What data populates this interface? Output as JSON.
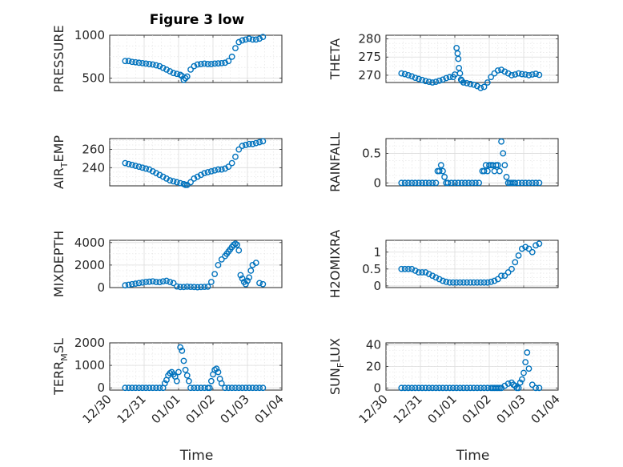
{
  "figure": {
    "title": "Figure 3 low",
    "marker_color": "#0072BD"
  },
  "chart_data": [
    {
      "type": "scatter",
      "panel": 1,
      "ylabel": "PRESSURE",
      "xlabel": "",
      "ylim": [
        450,
        1000
      ],
      "yticks": [
        500,
        1000
      ],
      "ytick_labels": [
        "500",
        "1000"
      ],
      "xlim": [
        0,
        5
      ],
      "xtick_labels": [],
      "grid": true,
      "x": [
        0.45,
        0.55,
        0.65,
        0.75,
        0.85,
        0.95,
        1.05,
        1.15,
        1.25,
        1.35,
        1.45,
        1.55,
        1.65,
        1.75,
        1.85,
        1.95,
        2.05,
        2.1,
        2.15,
        2.2,
        2.25,
        2.35,
        2.45,
        2.55,
        2.65,
        2.75,
        2.85,
        2.95,
        3.05,
        3.15,
        3.25,
        3.35,
        3.45,
        3.55,
        3.65,
        3.75,
        3.85,
        3.95,
        4.05,
        4.15,
        4.25,
        4.35,
        4.45
      ],
      "y": [
        700,
        700,
        690,
        685,
        680,
        675,
        670,
        665,
        660,
        650,
        640,
        620,
        600,
        580,
        560,
        550,
        540,
        525,
        480,
        500,
        520,
        600,
        640,
        660,
        665,
        670,
        665,
        665,
        670,
        672,
        675,
        680,
        700,
        750,
        850,
        920,
        940,
        950,
        960,
        950,
        950,
        960,
        980
      ]
    },
    {
      "type": "scatter",
      "panel": 2,
      "ylabel": "THETA",
      "xlabel": "",
      "ylim": [
        268,
        281
      ],
      "yticks": [
        270,
        275,
        280
      ],
      "ytick_labels": [
        "270",
        "275",
        "280"
      ],
      "xlim": [
        0,
        5
      ],
      "xtick_labels": [],
      "grid": true,
      "x": [
        0.45,
        0.55,
        0.65,
        0.75,
        0.85,
        0.95,
        1.05,
        1.15,
        1.25,
        1.35,
        1.45,
        1.55,
        1.65,
        1.75,
        1.85,
        1.95,
        2.0,
        2.05,
        2.08,
        2.1,
        2.12,
        2.15,
        2.18,
        2.2,
        2.25,
        2.35,
        2.45,
        2.55,
        2.65,
        2.75,
        2.85,
        2.95,
        3.05,
        3.15,
        3.25,
        3.35,
        3.45,
        3.55,
        3.65,
        3.75,
        3.85,
        3.95,
        4.05,
        4.15,
        4.25,
        4.35,
        4.45
      ],
      "y": [
        270.5,
        270.3,
        270,
        269.7,
        269.3,
        269,
        268.7,
        268.4,
        268.2,
        268,
        268.2,
        268.5,
        268.8,
        269.2,
        269.5,
        269.5,
        270.2,
        277.5,
        276,
        274.5,
        272,
        270.5,
        268.8,
        268.5,
        268,
        267.8,
        267.6,
        267.4,
        267,
        266.5,
        266.8,
        268,
        269.5,
        270.5,
        271.3,
        271.5,
        271,
        270.5,
        270,
        270.2,
        270.5,
        270.3,
        270.2,
        270,
        270.2,
        270.4,
        270.1
      ]
    },
    {
      "type": "scatter",
      "panel": 3,
      "ylabel": "AIR_TEMP",
      "ylabel_parts": {
        "main": "AIR",
        "sub": "T",
        "rest": "EMP"
      },
      "xlabel": "",
      "ylim": [
        220,
        272
      ],
      "yticks": [
        240,
        260
      ],
      "ytick_labels": [
        "240",
        "260"
      ],
      "xlim": [
        0,
        5
      ],
      "xtick_labels": [],
      "grid": true,
      "x": [
        0.45,
        0.55,
        0.65,
        0.75,
        0.85,
        0.95,
        1.05,
        1.15,
        1.25,
        1.35,
        1.45,
        1.55,
        1.65,
        1.75,
        1.85,
        1.95,
        2.05,
        2.15,
        2.2,
        2.25,
        2.35,
        2.45,
        2.55,
        2.65,
        2.75,
        2.85,
        2.95,
        3.05,
        3.15,
        3.25,
        3.35,
        3.45,
        3.55,
        3.65,
        3.75,
        3.85,
        3.95,
        4.05,
        4.15,
        4.25,
        4.35,
        4.45
      ],
      "y": [
        245,
        244,
        243,
        242,
        241,
        240,
        239,
        238,
        236,
        234,
        232,
        230,
        228,
        226,
        225,
        224,
        223,
        222,
        221,
        221,
        224,
        228,
        230,
        232,
        234,
        235,
        236,
        237,
        238,
        238,
        239,
        241,
        245,
        252,
        260,
        264,
        265,
        266,
        266,
        267,
        268,
        269
      ]
    },
    {
      "type": "scatter",
      "panel": 4,
      "ylabel": "RAINFALL",
      "xlabel": "",
      "ylim": [
        -0.05,
        0.75
      ],
      "yticks": [
        0,
        0.5
      ],
      "ytick_labels": [
        "0",
        "0.5"
      ],
      "xlim": [
        0,
        5
      ],
      "xtick_labels": [],
      "grid": true,
      "x": [
        0.45,
        0.55,
        0.65,
        0.75,
        0.85,
        0.95,
        1.05,
        1.15,
        1.25,
        1.35,
        1.45,
        1.5,
        1.55,
        1.6,
        1.65,
        1.7,
        1.75,
        1.8,
        1.9,
        2.0,
        2.1,
        2.2,
        2.3,
        2.4,
        2.5,
        2.6,
        2.7,
        2.8,
        2.85,
        2.9,
        2.95,
        3.0,
        3.05,
        3.1,
        3.15,
        3.2,
        3.25,
        3.3,
        3.35,
        3.4,
        3.45,
        3.5,
        3.55,
        3.6,
        3.65,
        3.7,
        3.75,
        3.85,
        3.95,
        4.05,
        4.15,
        4.25,
        4.35,
        4.45
      ],
      "y": [
        0,
        0,
        0,
        0,
        0,
        0,
        0,
        0,
        0,
        0,
        0,
        0.2,
        0.2,
        0.3,
        0.2,
        0.1,
        0,
        0,
        0,
        0,
        0,
        0,
        0,
        0,
        0,
        0,
        0,
        0.2,
        0.2,
        0.3,
        0.2,
        0.3,
        0.3,
        0.3,
        0.2,
        0.3,
        0.3,
        0.2,
        0.7,
        0.5,
        0.3,
        0.1,
        0,
        0,
        0,
        0,
        0,
        0,
        0,
        0,
        0,
        0,
        0,
        0
      ]
    },
    {
      "type": "scatter",
      "panel": 5,
      "ylabel": "MIXDEPTH",
      "xlabel": "",
      "ylim": [
        0,
        4200
      ],
      "yticks": [
        0,
        2000,
        4000
      ],
      "ytick_labels": [
        "0",
        "2000",
        "4000"
      ],
      "xlim": [
        0,
        5
      ],
      "xtick_labels": [],
      "grid": true,
      "x": [
        0.45,
        0.55,
        0.65,
        0.75,
        0.85,
        0.95,
        1.05,
        1.15,
        1.25,
        1.35,
        1.45,
        1.55,
        1.65,
        1.75,
        1.85,
        1.95,
        2.05,
        2.15,
        2.25,
        2.35,
        2.45,
        2.55,
        2.65,
        2.75,
        2.85,
        2.95,
        3.05,
        3.15,
        3.25,
        3.35,
        3.4,
        3.45,
        3.5,
        3.55,
        3.6,
        3.65,
        3.7,
        3.75,
        3.8,
        3.85,
        3.9,
        3.95,
        4.0,
        4.05,
        4.1,
        4.15,
        4.25,
        4.35,
        4.45
      ],
      "y": [
        200,
        250,
        300,
        350,
        400,
        450,
        500,
        520,
        550,
        500,
        480,
        550,
        600,
        500,
        400,
        100,
        50,
        50,
        80,
        60,
        50,
        30,
        50,
        60,
        80,
        500,
        1200,
        2000,
        2500,
        2800,
        3000,
        3200,
        3400,
        3600,
        3800,
        3900,
        3800,
        3300,
        1100,
        800,
        500,
        300,
        600,
        900,
        1500,
        2000,
        2200,
        400,
        300
      ]
    },
    {
      "type": "scatter",
      "panel": 6,
      "ylabel": "H2OMIXRA",
      "xlabel": "",
      "ylim": [
        -0.05,
        1.35
      ],
      "yticks": [
        0,
        0.5,
        1
      ],
      "ytick_labels": [
        "0",
        "0.5",
        "1"
      ],
      "xlim": [
        0,
        5
      ],
      "xtick_labels": [],
      "grid": true,
      "x": [
        0.45,
        0.55,
        0.65,
        0.75,
        0.85,
        0.95,
        1.05,
        1.15,
        1.25,
        1.35,
        1.45,
        1.55,
        1.65,
        1.75,
        1.85,
        1.95,
        2.05,
        2.15,
        2.25,
        2.35,
        2.45,
        2.55,
        2.65,
        2.75,
        2.85,
        2.95,
        3.05,
        3.15,
        3.25,
        3.35,
        3.45,
        3.55,
        3.65,
        3.75,
        3.85,
        3.95,
        4.05,
        4.15,
        4.25,
        4.35,
        4.45
      ],
      "y": [
        0.5,
        0.5,
        0.5,
        0.5,
        0.45,
        0.4,
        0.4,
        0.4,
        0.35,
        0.3,
        0.25,
        0.2,
        0.15,
        0.12,
        0.1,
        0.1,
        0.1,
        0.1,
        0.1,
        0.1,
        0.1,
        0.1,
        0.1,
        0.1,
        0.1,
        0.1,
        0.12,
        0.15,
        0.2,
        0.3,
        0.3,
        0.4,
        0.5,
        0.7,
        0.9,
        1.1,
        1.15,
        1.1,
        1.0,
        1.2,
        1.25
      ]
    },
    {
      "type": "scatter",
      "panel": 7,
      "ylabel": "TERR_MSL",
      "ylabel_parts": {
        "main": "TERR",
        "sub": "M",
        "rest": "SL"
      },
      "xlabel": "Time",
      "ylim": [
        -100,
        2000
      ],
      "yticks": [
        0,
        1000,
        2000
      ],
      "ytick_labels": [
        "0",
        "1000",
        "2000"
      ],
      "xlim": [
        0,
        5
      ],
      "xtick_labels": [
        "12/30",
        "12/31",
        "01/01",
        "01/02",
        "01/03",
        "01/04"
      ],
      "grid": true,
      "x": [
        0.45,
        0.55,
        0.65,
        0.75,
        0.85,
        0.95,
        1.05,
        1.15,
        1.25,
        1.35,
        1.45,
        1.55,
        1.6,
        1.65,
        1.7,
        1.75,
        1.8,
        1.85,
        1.9,
        1.95,
        2.0,
        2.05,
        2.1,
        2.15,
        2.2,
        2.25,
        2.3,
        2.35,
        2.45,
        2.55,
        2.65,
        2.75,
        2.85,
        2.9,
        2.95,
        3.0,
        3.05,
        3.1,
        3.15,
        3.2,
        3.25,
        3.35,
        3.45,
        3.55,
        3.65,
        3.75,
        3.85,
        3.95,
        4.05,
        4.15,
        4.25,
        4.35,
        4.45
      ],
      "y": [
        0,
        0,
        0,
        0,
        0,
        0,
        0,
        0,
        0,
        0,
        0,
        0,
        200,
        350,
        550,
        650,
        700,
        600,
        500,
        300,
        700,
        1800,
        1650,
        1200,
        800,
        550,
        300,
        0,
        0,
        0,
        0,
        0,
        0,
        0,
        300,
        600,
        800,
        850,
        700,
        400,
        200,
        0,
        0,
        0,
        0,
        0,
        0,
        0,
        0,
        0,
        0,
        0,
        0
      ]
    },
    {
      "type": "scatter",
      "panel": 8,
      "ylabel": "SUN_FLUX",
      "ylabel_parts": {
        "main": "SUN",
        "sub": "F",
        "rest": "LUX"
      },
      "xlabel": "Time",
      "ylim": [
        -2,
        42
      ],
      "yticks": [
        0,
        20,
        40
      ],
      "ytick_labels": [
        "0",
        "20",
        "40"
      ],
      "xlim": [
        0,
        5
      ],
      "xtick_labels": [
        "12/30",
        "12/31",
        "01/01",
        "01/02",
        "01/03",
        "01/04"
      ],
      "grid": true,
      "x": [
        0.45,
        0.55,
        0.65,
        0.75,
        0.85,
        0.95,
        1.05,
        1.15,
        1.25,
        1.35,
        1.45,
        1.55,
        1.65,
        1.75,
        1.85,
        1.95,
        2.05,
        2.15,
        2.25,
        2.35,
        2.45,
        2.55,
        2.65,
        2.75,
        2.85,
        2.95,
        3.05,
        3.1,
        3.15,
        3.2,
        3.25,
        3.3,
        3.35,
        3.45,
        3.55,
        3.65,
        3.7,
        3.75,
        3.8,
        3.85,
        3.9,
        3.95,
        4.0,
        4.05,
        4.1,
        4.15,
        4.25,
        4.35,
        4.45
      ],
      "y": [
        0,
        0,
        0,
        0,
        0,
        0,
        0,
        0,
        0,
        0,
        0,
        0,
        0,
        0,
        0,
        0,
        0,
        0,
        0,
        0,
        0,
        0,
        0,
        0,
        0,
        0,
        0,
        0,
        0,
        0,
        0,
        0,
        0,
        2,
        4,
        5,
        3,
        2,
        0,
        0,
        5,
        8,
        14,
        24,
        33,
        18,
        3,
        0,
        0
      ]
    }
  ]
}
